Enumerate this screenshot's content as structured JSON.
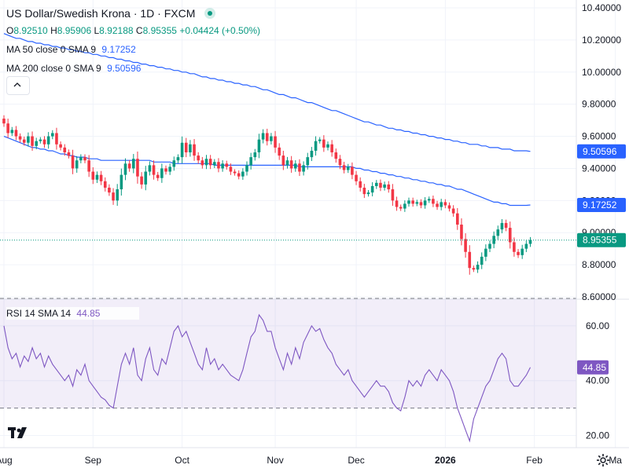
{
  "header": {
    "title": "US Dollar/Swedish Krona · 1D · FXCM",
    "live_status_icon": "live-dot-icon",
    "ohlc": {
      "o_label": "O",
      "o_value": "8.92510",
      "h_label": "H",
      "h_value": "8.95906",
      "l_label": "L",
      "l_value": "8.92188",
      "c_label": "C",
      "c_value": "8.95355",
      "change": "+0.04424 (+0.50%)"
    },
    "ma50": {
      "label": "MA 50 close 0 SMA 9",
      "value": "9.17252"
    },
    "ma200": {
      "label": "MA 200 close 0 SMA 9",
      "value": "9.50596"
    }
  },
  "rsi_legend": {
    "label": "RSI 14 SMA 14",
    "value": "44.85"
  },
  "colors": {
    "up": "#089981",
    "down": "#f23645",
    "ma": "#2962ff",
    "rsi": "#7e57c2",
    "rsi_band": "#7e57c2",
    "grid": "#f0f3fa",
    "axis_text": "#131722"
  },
  "price_axis": {
    "labels": [
      "10.40000",
      "10.20000",
      "10.00000",
      "9.80000",
      "9.60000",
      "9.40000",
      "9.20000",
      "9.00000",
      "8.80000",
      "8.60000"
    ],
    "badges": [
      {
        "name": "ma200-price-badge",
        "value": "9.50596",
        "price": 9.50596,
        "bg": "#2962ff",
        "fg": "#ffffff"
      },
      {
        "name": "ma50-price-badge",
        "value": "9.17252",
        "price": 9.17252,
        "bg": "#2962ff",
        "fg": "#ffffff"
      },
      {
        "name": "last-price-badge",
        "value": "8.95355",
        "price": 8.95355,
        "bg": "#089981",
        "fg": "#ffffff"
      }
    ]
  },
  "rsi_axis": {
    "labels": [
      "60.00",
      "40.00",
      "20.00"
    ],
    "badge": {
      "value": "44.85",
      "level": 44.85
    }
  },
  "time_axis": {
    "labels": [
      {
        "text": "Aug",
        "idx": 0,
        "bold": false
      },
      {
        "text": "Sep",
        "idx": 22,
        "bold": false
      },
      {
        "text": "Oct",
        "idx": 44,
        "bold": false
      },
      {
        "text": "Nov",
        "idx": 67,
        "bold": false
      },
      {
        "text": "Dec",
        "idx": 87,
        "bold": false
      },
      {
        "text": "2026",
        "idx": 109,
        "bold": true
      },
      {
        "text": "Feb",
        "idx": 131,
        "bold": false
      },
      {
        "text": "Ma",
        "idx": 151,
        "bold": false
      }
    ]
  },
  "chart_data": {
    "type": "candlestick",
    "price_ylim": [
      8.6,
      10.4
    ],
    "rsi_ylim": [
      15,
      70
    ],
    "rsi_bands": [
      30,
      70
    ],
    "last_price": 8.95355,
    "closes": [
      9.68,
      9.62,
      9.64,
      9.6,
      9.58,
      9.56,
      9.6,
      9.54,
      9.57,
      9.58,
      9.55,
      9.6,
      9.62,
      9.55,
      9.53,
      9.5,
      9.48,
      9.4,
      9.45,
      9.47,
      9.45,
      9.38,
      9.33,
      9.36,
      9.32,
      9.28,
      9.25,
      9.2,
      9.27,
      9.36,
      9.43,
      9.4,
      9.46,
      9.35,
      9.3,
      9.38,
      9.42,
      9.36,
      9.34,
      9.4,
      9.38,
      9.41,
      9.45,
      9.47,
      9.56,
      9.5,
      9.55,
      9.48,
      9.45,
      9.42,
      9.46,
      9.42,
      9.44,
      9.4,
      9.43,
      9.41,
      9.38,
      9.37,
      9.35,
      9.38,
      9.42,
      9.47,
      9.5,
      9.58,
      9.62,
      9.57,
      9.6,
      9.53,
      9.48,
      9.42,
      9.45,
      9.4,
      9.43,
      9.38,
      9.42,
      9.47,
      9.51,
      9.57,
      9.58,
      9.53,
      9.55,
      9.5,
      9.46,
      9.42,
      9.39,
      9.41,
      9.36,
      9.32,
      9.28,
      9.24,
      9.25,
      9.29,
      9.31,
      9.28,
      9.3,
      9.27,
      9.2,
      9.16,
      9.15,
      9.18,
      9.2,
      9.18,
      9.19,
      9.17,
      9.2,
      9.21,
      9.18,
      9.16,
      9.19,
      9.17,
      9.15,
      9.12,
      9.05,
      8.96,
      8.88,
      8.78,
      8.77,
      8.8,
      8.85,
      8.9,
      8.93,
      8.98,
      9.02,
      9.06,
      9.03,
      8.94,
      8.88,
      8.86,
      8.9,
      8.93,
      8.95355
    ],
    "ma50": [
      9.6,
      9.59,
      9.58,
      9.57,
      9.56,
      9.55,
      9.54,
      9.53,
      9.53,
      9.52,
      9.52,
      9.51,
      9.51,
      9.5,
      9.49,
      9.49,
      9.48,
      9.48,
      9.47,
      9.47,
      9.47,
      9.46,
      9.46,
      9.46,
      9.45,
      9.45,
      9.45,
      9.45,
      9.45,
      9.45,
      9.45,
      9.45,
      9.45,
      9.45,
      9.45,
      9.45,
      9.45,
      9.44,
      9.44,
      9.44,
      9.44,
      9.44,
      9.43,
      9.43,
      9.43,
      9.43,
      9.43,
      9.43,
      9.43,
      9.43,
      9.43,
      9.43,
      9.42,
      9.42,
      9.42,
      9.42,
      9.42,
      9.42,
      9.42,
      9.42,
      9.42,
      9.42,
      9.42,
      9.42,
      9.42,
      9.42,
      9.42,
      9.42,
      9.42,
      9.42,
      9.42,
      9.42,
      9.42,
      9.41,
      9.41,
      9.41,
      9.41,
      9.41,
      9.41,
      9.41,
      9.41,
      9.41,
      9.41,
      9.41,
      9.41,
      9.41,
      9.41,
      9.4,
      9.4,
      9.39,
      9.39,
      9.38,
      9.38,
      9.37,
      9.37,
      9.36,
      9.36,
      9.35,
      9.35,
      9.34,
      9.34,
      9.33,
      9.33,
      9.32,
      9.32,
      9.31,
      9.31,
      9.3,
      9.3,
      9.29,
      9.29,
      9.28,
      9.27,
      9.27,
      9.26,
      9.25,
      9.24,
      9.23,
      9.22,
      9.21,
      9.2,
      9.19,
      9.19,
      9.18,
      9.18,
      9.17,
      9.17,
      9.17,
      9.17,
      9.17,
      9.17252
    ],
    "ma200": [
      10.24,
      10.23,
      10.22,
      10.21,
      10.21,
      10.2,
      10.19,
      10.19,
      10.18,
      10.18,
      10.17,
      10.17,
      10.16,
      10.16,
      10.15,
      10.15,
      10.14,
      10.14,
      10.13,
      10.13,
      10.12,
      10.12,
      10.11,
      10.11,
      10.1,
      10.1,
      10.09,
      10.09,
      10.08,
      10.08,
      10.07,
      10.07,
      10.06,
      10.06,
      10.05,
      10.05,
      10.04,
      10.04,
      10.03,
      10.03,
      10.02,
      10.02,
      10.01,
      10.01,
      10.0,
      10.0,
      9.99,
      9.99,
      9.98,
      9.97,
      9.97,
      9.96,
      9.96,
      9.95,
      9.95,
      9.94,
      9.94,
      9.93,
      9.93,
      9.92,
      9.92,
      9.91,
      9.91,
      9.9,
      9.89,
      9.89,
      9.88,
      9.87,
      9.86,
      9.86,
      9.85,
      9.84,
      9.84,
      9.83,
      9.82,
      9.81,
      9.81,
      9.8,
      9.79,
      9.78,
      9.77,
      9.76,
      9.76,
      9.75,
      9.74,
      9.73,
      9.72,
      9.71,
      9.7,
      9.69,
      9.69,
      9.68,
      9.67,
      9.67,
      9.66,
      9.65,
      9.65,
      9.64,
      9.64,
      9.63,
      9.63,
      9.62,
      9.62,
      9.61,
      9.61,
      9.6,
      9.6,
      9.59,
      9.59,
      9.58,
      9.58,
      9.57,
      9.57,
      9.56,
      9.56,
      9.55,
      9.55,
      9.55,
      9.54,
      9.54,
      9.53,
      9.53,
      9.53,
      9.52,
      9.52,
      9.52,
      9.51,
      9.51,
      9.51,
      9.51,
      9.50596
    ],
    "rsi": [
      60,
      52,
      48,
      50,
      45,
      49,
      47,
      52,
      48,
      50,
      45,
      49,
      46,
      44,
      42,
      40,
      42,
      38,
      44,
      42,
      46,
      40,
      38,
      36,
      34,
      33,
      31,
      30,
      38,
      46,
      50,
      46,
      52,
      42,
      40,
      48,
      52,
      44,
      42,
      48,
      46,
      52,
      58,
      60,
      56,
      58,
      54,
      50,
      46,
      44,
      52,
      46,
      48,
      44,
      46,
      44,
      42,
      41,
      40,
      44,
      50,
      56,
      58,
      64,
      62,
      58,
      58,
      52,
      48,
      44,
      50,
      46,
      52,
      48,
      54,
      57,
      60,
      58,
      59,
      55,
      52,
      50,
      46,
      44,
      42,
      44,
      40,
      38,
      36,
      34,
      36,
      38,
      40,
      38,
      38,
      36,
      32,
      30,
      29,
      34,
      40,
      38,
      40,
      38,
      42,
      44,
      42,
      40,
      44,
      42,
      40,
      36,
      30,
      26,
      22,
      18,
      26,
      30,
      34,
      38,
      40,
      44,
      48,
      50,
      48,
      40,
      38,
      38,
      40,
      42,
      44.85
    ]
  }
}
